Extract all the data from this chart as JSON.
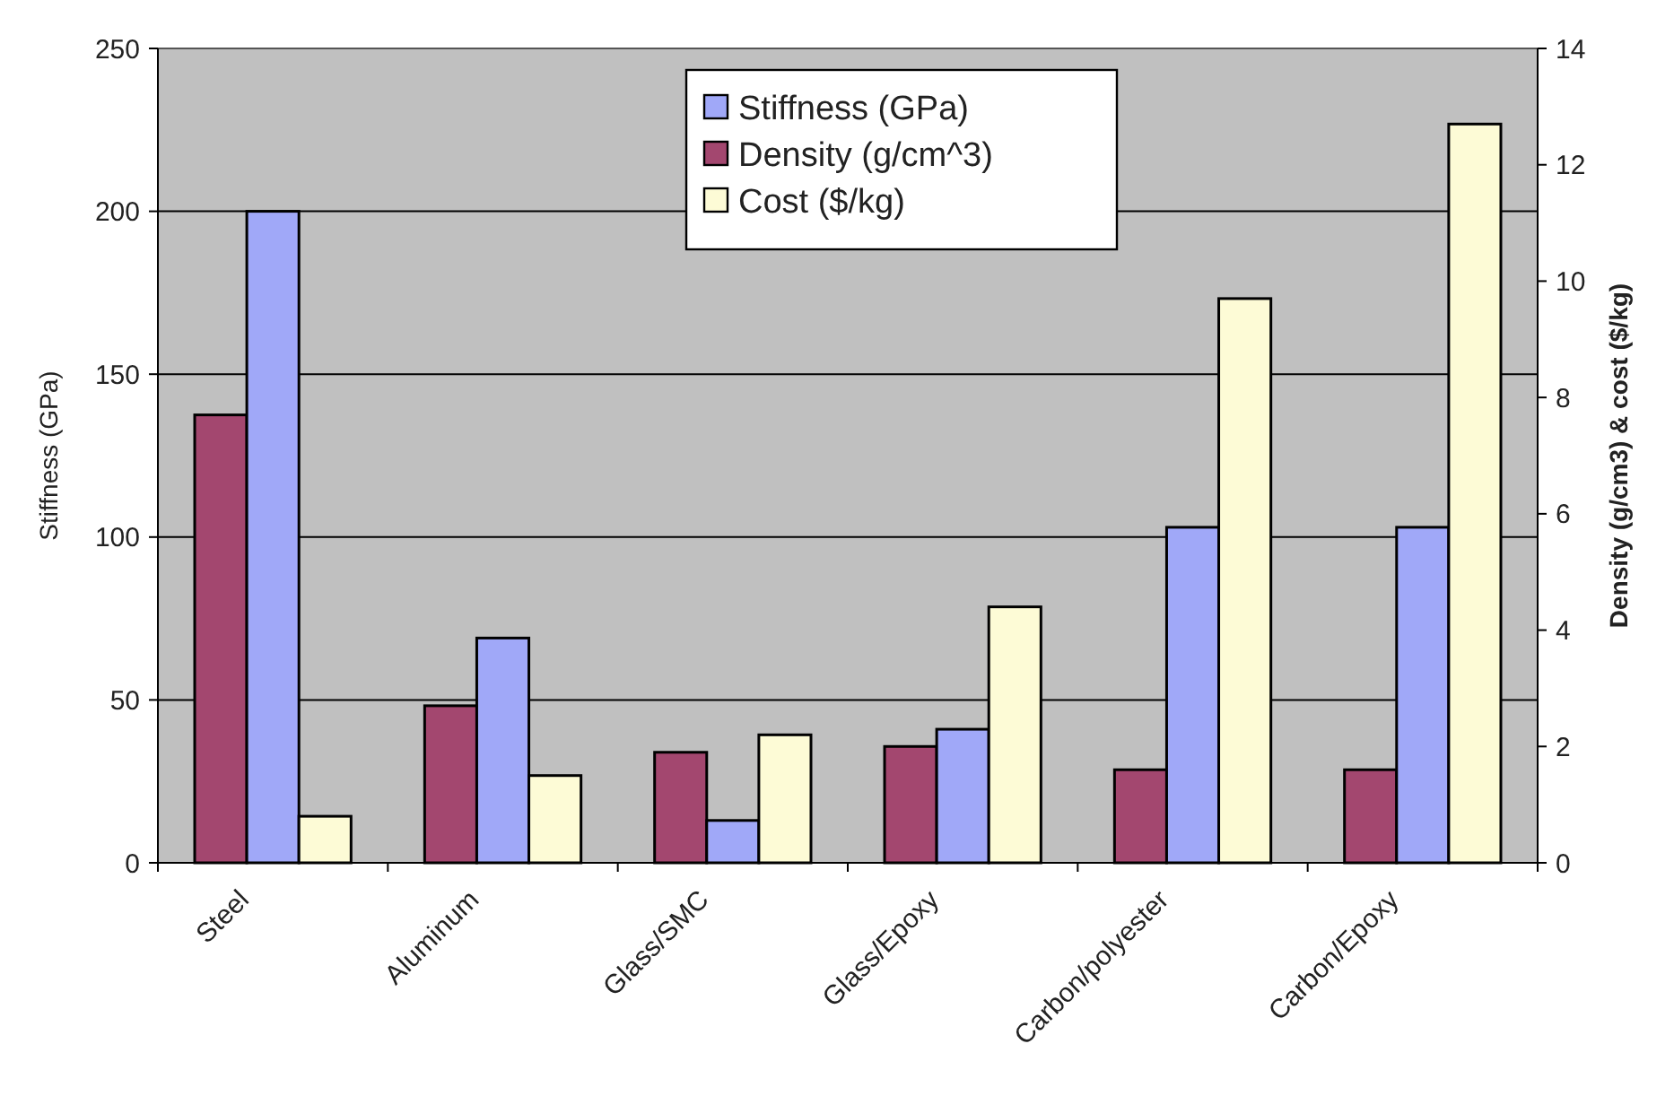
{
  "chart_data": {
    "type": "bar",
    "ylabel": "Stiffness (GPa)",
    "y2label": "Density (g/cm3) & cost ($/kg)",
    "categories": [
      "Steel",
      "Aluminum",
      "Glass/SMC",
      "Glass/Epoxy",
      "Carbon/polyester",
      "Carbon/Epoxy"
    ],
    "series": [
      {
        "name": "Density (g/cm^3)",
        "color": "#a3476f",
        "axis": "y2",
        "values": [
          7.7,
          2.7,
          1.9,
          2.0,
          1.6,
          1.6
        ]
      },
      {
        "name": "Stiffness (GPa)",
        "color": "#a0a8f8",
        "axis": "y",
        "values": [
          200,
          69,
          13,
          41,
          103,
          103
        ]
      },
      {
        "name": "Cost ($/kg)",
        "color": "#fdfbd6",
        "axis": "y2",
        "values": [
          0.8,
          1.5,
          2.2,
          4.4,
          9.7,
          12.7
        ]
      }
    ],
    "ylim": [
      0,
      250
    ],
    "yticks": [
      0,
      50,
      100,
      150,
      200,
      250
    ],
    "y2lim": [
      0,
      14
    ],
    "y2ticks": [
      0,
      2,
      4,
      6,
      8,
      10,
      12,
      14
    ],
    "grid": "y",
    "legend": "top"
  }
}
